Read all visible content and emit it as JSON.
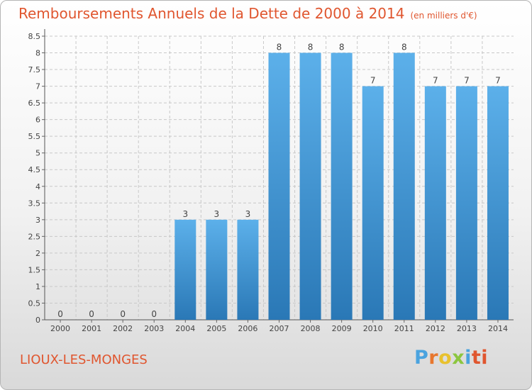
{
  "chart_data": {
    "type": "bar",
    "title": "Remboursements Annuels de la Dette de 2000 à 2014",
    "unit_label": "(en milliers d'€)",
    "categories": [
      "2000",
      "2001",
      "2002",
      "2003",
      "2004",
      "2005",
      "2006",
      "2007",
      "2008",
      "2009",
      "2010",
      "2011",
      "2012",
      "2013",
      "2014"
    ],
    "values": [
      0,
      0,
      0,
      0,
      3,
      3,
      3,
      8,
      8,
      8,
      7,
      8,
      7,
      7,
      7
    ],
    "labels": [
      "0",
      "0",
      "0",
      "0",
      "3",
      "3",
      "3",
      "8",
      "8",
      "8",
      "7",
      "8",
      "7",
      "7",
      "7"
    ],
    "ylim": [
      0,
      8.5
    ],
    "yticks": [
      {
        "value": 0,
        "label": "0"
      },
      {
        "value": 0.5,
        "label": "0.5"
      },
      {
        "value": 1,
        "label": "1"
      },
      {
        "value": 1.5,
        "label": "1.5"
      },
      {
        "value": 2,
        "label": "2"
      },
      {
        "value": 2.5,
        "label": "2.5"
      },
      {
        "value": 3,
        "label": "3"
      },
      {
        "value": 3.5,
        "label": "3.5"
      },
      {
        "value": 4,
        "label": "4"
      },
      {
        "value": 4.5,
        "label": "4.5"
      },
      {
        "value": 5,
        "label": "5"
      },
      {
        "value": 5.5,
        "label": "5.5"
      },
      {
        "value": 6,
        "label": "6"
      },
      {
        "value": 6.5,
        "label": "6.5"
      },
      {
        "value": 7,
        "label": "7"
      },
      {
        "value": 7.5,
        "label": "7.5"
      },
      {
        "value": 8,
        "label": "8"
      },
      {
        "value": 8.5,
        "label": "8.5"
      }
    ],
    "grid": true,
    "xlabel": "",
    "ylabel": "",
    "colors": {
      "bar_light": "#5cb0ea",
      "bar_dark": "#2a78b6",
      "grid": "#c8c8c8",
      "title": "#e0562f"
    }
  },
  "commune": "LIOUX-LES-MONGES",
  "logo": {
    "letters": [
      "P",
      "r",
      "o",
      "x",
      "i",
      "ti"
    ]
  }
}
